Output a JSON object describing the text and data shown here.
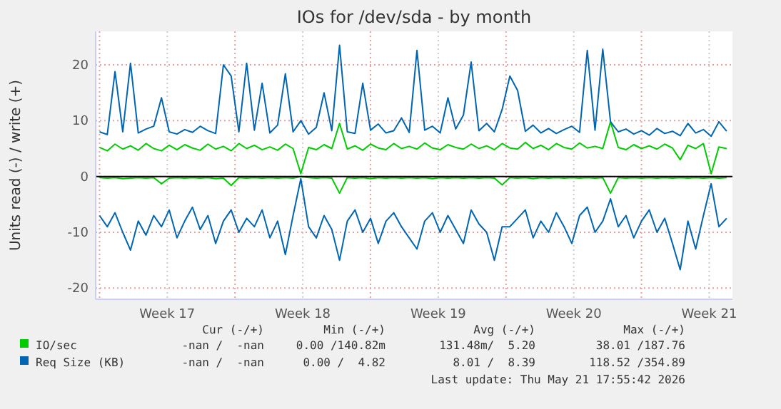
{
  "chart_data": {
    "type": "line",
    "title": "IOs for /dev/sda - by month",
    "ylabel": "Units read (-) / write (+)",
    "x": [
      "2026-04-20T00:00",
      "2026-04-20T09:36",
      "2026-04-20T19:12",
      "2026-04-21T04:48",
      "2026-04-21T14:24",
      "2026-04-22T00:00",
      "2026-04-22T09:36",
      "2026-04-22T19:12",
      "2026-04-23T04:48",
      "2026-04-23T14:24",
      "2026-04-24T00:00",
      "2026-04-24T09:36",
      "2026-04-24T19:12",
      "2026-04-25T04:48",
      "2026-04-25T14:24",
      "2026-04-26T00:00",
      "2026-04-26T09:36",
      "2026-04-26T19:12",
      "2026-04-27T04:48",
      "2026-04-27T14:24",
      "2026-04-28T00:00",
      "2026-04-28T09:36",
      "2026-04-28T19:12",
      "2026-04-29T04:48",
      "2026-04-29T14:24",
      "2026-04-30T00:00",
      "2026-04-30T09:36",
      "2026-04-30T19:12",
      "2026-05-01T04:48",
      "2026-05-01T14:24",
      "2026-05-02T00:00",
      "2026-05-02T09:36",
      "2026-05-02T19:12",
      "2026-05-03T04:48",
      "2026-05-03T14:24",
      "2026-05-04T00:00",
      "2026-05-04T09:36",
      "2026-05-04T19:12",
      "2026-05-05T04:48",
      "2026-05-05T14:24",
      "2026-05-06T00:00",
      "2026-05-06T09:36",
      "2026-05-06T19:12",
      "2026-05-07T04:48",
      "2026-05-07T14:24",
      "2026-05-08T00:00",
      "2026-05-08T09:36",
      "2026-05-08T19:12",
      "2026-05-09T04:48",
      "2026-05-09T14:24",
      "2026-05-10T00:00",
      "2026-05-10T09:36",
      "2026-05-10T19:12",
      "2026-05-11T04:48",
      "2026-05-11T14:24",
      "2026-05-12T00:00",
      "2026-05-12T09:36",
      "2026-05-12T19:12",
      "2026-05-13T04:48",
      "2026-05-13T14:24",
      "2026-05-14T00:00",
      "2026-05-14T09:36",
      "2026-05-14T19:12",
      "2026-05-15T04:48",
      "2026-05-15T14:24",
      "2026-05-16T00:00",
      "2026-05-16T09:36",
      "2026-05-16T19:12",
      "2026-05-17T04:48",
      "2026-05-17T14:24",
      "2026-05-18T00:00",
      "2026-05-18T09:36",
      "2026-05-18T19:12",
      "2026-05-19T04:48",
      "2026-05-19T14:24",
      "2026-05-20T00:00",
      "2026-05-20T09:36",
      "2026-05-20T19:12",
      "2026-05-21T04:48",
      "2026-05-21T14:24",
      "2026-05-22T00:00",
      "2026-05-22T09:36"
    ],
    "series": [
      {
        "name": "IO/sec",
        "color": "#00cc00",
        "values": [
          5.2,
          4.6,
          5.8,
          4.9,
          5.5,
          4.7,
          5.9,
          5.0,
          4.6,
          5.6,
          4.8,
          5.7,
          5.1,
          4.7,
          5.8,
          4.9,
          5.4,
          4.6,
          5.9,
          5.0,
          5.6,
          4.8,
          5.3,
          4.7,
          5.8,
          5.0,
          0.5,
          5.2,
          4.8,
          5.7,
          5.0,
          9.5,
          4.9,
          5.5,
          4.7,
          5.8,
          5.1,
          4.8,
          5.9,
          5.0,
          5.4,
          4.9,
          6.0,
          5.1,
          4.8,
          5.7,
          5.2,
          4.9,
          5.8,
          5.0,
          5.5,
          4.8,
          5.9,
          5.1,
          4.9,
          6.1,
          5.0,
          5.6,
          4.8,
          5.9,
          5.2,
          4.9,
          6.0,
          5.1,
          5.4,
          5.0,
          9.8,
          5.2,
          4.8,
          5.7,
          5.0,
          5.5,
          4.9,
          5.8,
          5.1,
          3.0,
          5.6,
          5.0,
          5.9,
          0.5,
          5.3,
          5.0
        ]
      },
      {
        "color": "#00cc00",
        "values": [
          -0.2,
          -0.3,
          -0.2,
          -0.4,
          -0.3,
          -0.2,
          -0.3,
          -0.2,
          -1.3,
          -0.3,
          -0.2,
          -0.3,
          -0.2,
          -0.3,
          -0.2,
          -0.4,
          -0.3,
          -1.6,
          -0.2,
          -0.3,
          -0.2,
          -0.3,
          -0.2,
          -0.3,
          -0.2,
          -0.3,
          0,
          -0.2,
          -0.3,
          -0.2,
          -0.3,
          -3.0,
          -0.2,
          -0.3,
          -0.2,
          -0.4,
          -0.2,
          -0.3,
          -0.2,
          -0.3,
          -0.2,
          -0.3,
          -0.2,
          -0.4,
          -0.2,
          -0.3,
          -0.2,
          -0.3,
          -0.2,
          -0.3,
          -0.2,
          -0.3,
          -1.5,
          -0.2,
          -0.3,
          -0.2,
          -0.4,
          -0.2,
          -0.3,
          -0.2,
          -0.3,
          -0.2,
          -0.3,
          -0.2,
          -0.3,
          -0.2,
          -3.0,
          -0.2,
          -0.3,
          -0.2,
          -0.3,
          -0.2,
          -0.3,
          -0.2,
          -0.3,
          -0.2,
          -0.3,
          -0.2,
          -0.3,
          -0.2,
          -0.3,
          -0.2
        ]
      },
      {
        "name": "Req Size (KB)",
        "color": "#0066b3",
        "values": [
          8,
          7.5,
          18.8,
          8,
          20.3,
          7.8,
          8.5,
          9,
          14.1,
          8,
          7.6,
          8.4,
          7.9,
          9,
          8.2,
          7.7,
          20,
          18,
          8,
          20.3,
          8.3,
          16.7,
          7.8,
          9.2,
          18.4,
          8,
          10,
          7.6,
          8.8,
          15,
          8.2,
          23.5,
          8,
          7.7,
          16.7,
          8.3,
          9.4,
          7.8,
          8.2,
          10.5,
          7.9,
          22.6,
          8.3,
          9,
          7.8,
          14.1,
          8.5,
          11,
          20.5,
          8.2,
          9.5,
          8,
          12,
          18,
          15.4,
          8.1,
          9.2,
          7.8,
          8.6,
          7.7,
          8.4,
          9,
          7.9,
          22.6,
          8.3,
          22.8,
          9.8,
          8,
          8.5,
          7.6,
          8.2,
          7.4,
          8.6,
          7.7,
          8.1,
          7.3,
          9.5,
          7.8,
          8.4,
          7.2,
          9.8,
          8.1
        ]
      },
      {
        "color": "#0066b3",
        "values": [
          -7,
          -9,
          -6.5,
          -10,
          -13.2,
          -8,
          -10.5,
          -7,
          -9,
          -6,
          -11,
          -8,
          -5.5,
          -9.5,
          -7,
          -12,
          -8,
          -6,
          -10,
          -7.5,
          -9,
          -6,
          -11,
          -8,
          -14,
          -7,
          -0.4,
          -9,
          -11,
          -7,
          -9.5,
          -15,
          -8,
          -6,
          -10,
          -7.5,
          -12,
          -8,
          -6.5,
          -9,
          -11,
          -13,
          -8,
          -6.5,
          -10,
          -7,
          -9.5,
          -12,
          -6,
          -8.5,
          -10,
          -15,
          -9,
          -9,
          -7.5,
          -6,
          -11,
          -8,
          -10,
          -6.5,
          -9,
          -12,
          -7,
          -5.5,
          -10,
          -8,
          -4,
          -9,
          -7,
          -11,
          -8,
          -6,
          -10,
          -7.5,
          -12,
          -16.7,
          -8,
          -13,
          -7,
          -1.3,
          -9,
          -7.5
        ]
      }
    ],
    "xlim": [
      "2026-04-19T19:12",
      "2026-05-22T16:48"
    ],
    "xticks": [
      {
        "value": "2026-04-20",
        "label": null
      },
      {
        "value": "2026-04-23T12:00",
        "label": "Week 17"
      },
      {
        "value": "2026-04-27",
        "label": null
      },
      {
        "value": "2026-04-30T12:00",
        "label": "Week 18"
      },
      {
        "value": "2026-05-04",
        "label": null
      },
      {
        "value": "2026-05-07T12:00",
        "label": "Week 19"
      },
      {
        "value": "2026-05-11",
        "label": null
      },
      {
        "value": "2026-05-14T12:00",
        "label": "Week 20"
      },
      {
        "value": "2026-05-18",
        "label": null
      },
      {
        "value": "2026-05-21T12:00",
        "label": "Week 21"
      }
    ],
    "ylim": [
      -22,
      26
    ],
    "yticks": [
      -20,
      -10,
      0,
      10,
      20
    ],
    "grid": true,
    "legend": "bottom",
    "ref_lines": [
      {
        "axis": "y",
        "value": 0,
        "color": "#000000"
      }
    ],
    "annotations": [
      "Cur (-/+)",
      "Min (-/+)",
      "Avg (-/+)",
      "Max (-/+)",
      "-nan /  -nan",
      "0.00 /140.82m",
      "131.48m/  5.20",
      "38.01 /187.76",
      "-nan /  -nan",
      "0.00 /  4.82",
      "8.01 /  8.39",
      "118.52 /354.89",
      "Last update: Thu May 21 17:55:42 2026"
    ]
  }
}
